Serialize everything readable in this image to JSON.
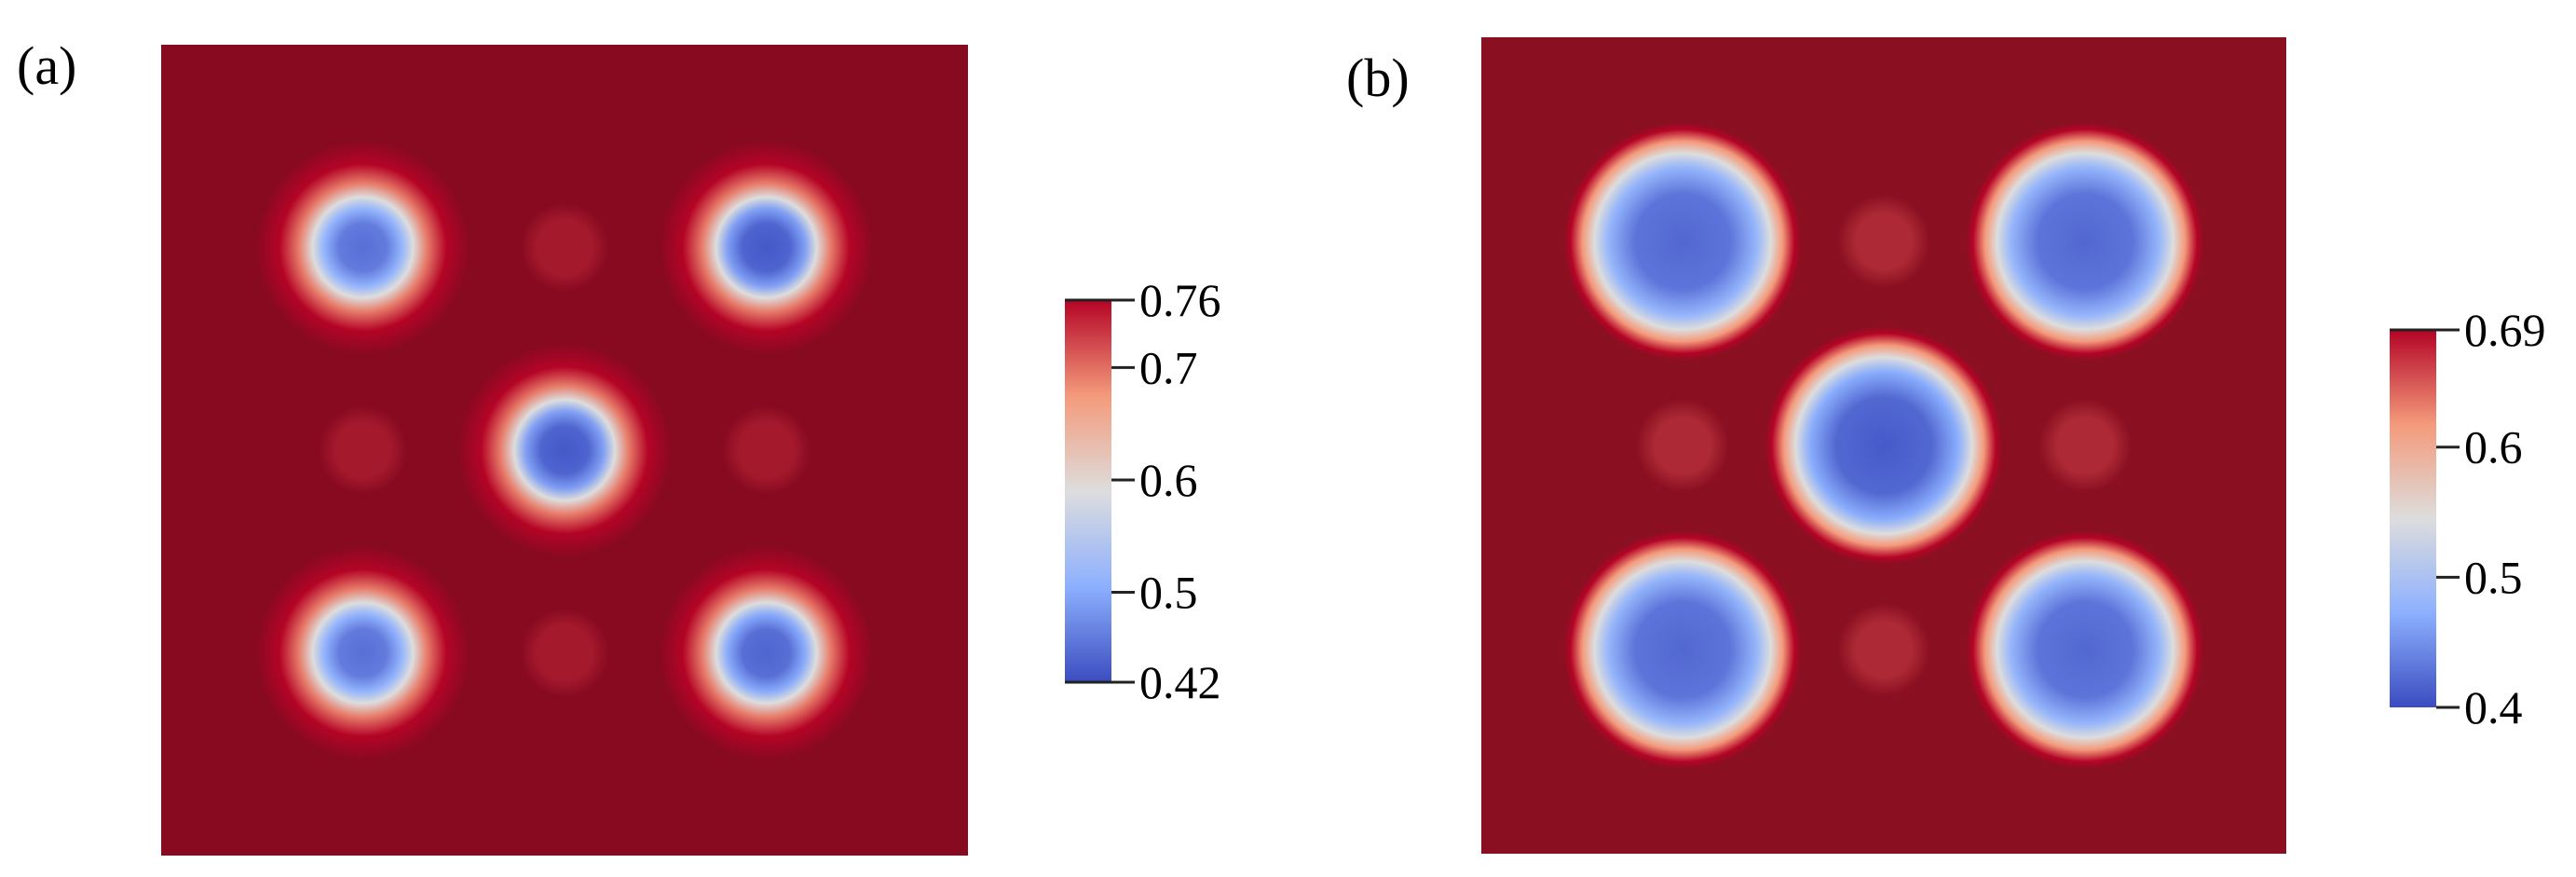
{
  "chart_data": [
    {
      "type": "heatmap",
      "panel_label": "(a)",
      "colorbar": {
        "min": 0.42,
        "max": 0.76,
        "ticks": [
          0.76,
          0.7,
          0.6,
          0.5,
          0.42
        ],
        "tick_labels": [
          "0.76",
          "0.7",
          "0.6",
          "0.5",
          "0.42"
        ],
        "colormap": "cool-to-warm",
        "stops": [
          {
            "value": 0.0,
            "color": "#3b4cc0"
          },
          {
            "value": 0.25,
            "color": "#8db0fe"
          },
          {
            "value": 0.5,
            "color": "#dddddd"
          },
          {
            "value": 0.75,
            "color": "#f49a7b"
          },
          {
            "value": 1.0,
            "color": "#b40426"
          }
        ]
      },
      "background_value": 0.76,
      "background_color": "#870a20",
      "features": [
        {
          "name": "droplet",
          "x": 0.25,
          "y": 0.75,
          "core_value": 0.45,
          "size": "small"
        },
        {
          "name": "droplet",
          "x": 0.75,
          "y": 0.75,
          "core_value": 0.43,
          "size": "small"
        },
        {
          "name": "droplet",
          "x": 0.5,
          "y": 0.5,
          "core_value": 0.43,
          "size": "small"
        },
        {
          "name": "droplet",
          "x": 0.25,
          "y": 0.25,
          "core_value": 0.45,
          "size": "small"
        },
        {
          "name": "droplet",
          "x": 0.75,
          "y": 0.25,
          "core_value": 0.44,
          "size": "small"
        },
        {
          "name": "faint-spot",
          "x": 0.5,
          "y": 0.75,
          "core_value": 0.74
        },
        {
          "name": "faint-spot",
          "x": 0.25,
          "y": 0.5,
          "core_value": 0.74
        },
        {
          "name": "faint-spot",
          "x": 0.75,
          "y": 0.5,
          "core_value": 0.74
        },
        {
          "name": "faint-spot",
          "x": 0.5,
          "y": 0.25,
          "core_value": 0.74
        }
      ]
    },
    {
      "type": "heatmap",
      "panel_label": "(b)",
      "colorbar": {
        "min": 0.4,
        "max": 0.69,
        "ticks": [
          0.69,
          0.6,
          0.5,
          0.4
        ],
        "tick_labels": [
          "0.69",
          "0.6",
          "0.5",
          "0.4"
        ],
        "colormap": "cool-to-warm",
        "stops": [
          {
            "value": 0.0,
            "color": "#3b4cc0"
          },
          {
            "value": 0.25,
            "color": "#8db0fe"
          },
          {
            "value": 0.5,
            "color": "#dddddd"
          },
          {
            "value": 0.75,
            "color": "#f49a7b"
          },
          {
            "value": 1.0,
            "color": "#b40426"
          }
        ]
      },
      "background_value": 0.69,
      "background_color": "#8a0f21",
      "features": [
        {
          "name": "droplet",
          "x": 0.25,
          "y": 0.75,
          "core_value": 0.42,
          "size": "large"
        },
        {
          "name": "droplet",
          "x": 0.75,
          "y": 0.75,
          "core_value": 0.42,
          "size": "large"
        },
        {
          "name": "droplet",
          "x": 0.5,
          "y": 0.5,
          "core_value": 0.41,
          "size": "large"
        },
        {
          "name": "droplet",
          "x": 0.25,
          "y": 0.25,
          "core_value": 0.42,
          "size": "large"
        },
        {
          "name": "droplet",
          "x": 0.75,
          "y": 0.25,
          "core_value": 0.42,
          "size": "large"
        },
        {
          "name": "faint-spot",
          "x": 0.5,
          "y": 0.75,
          "core_value": 0.66
        },
        {
          "name": "faint-spot",
          "x": 0.25,
          "y": 0.5,
          "core_value": 0.66
        },
        {
          "name": "faint-spot",
          "x": 0.75,
          "y": 0.5,
          "core_value": 0.66
        },
        {
          "name": "faint-spot",
          "x": 0.5,
          "y": 0.25,
          "core_value": 0.66
        }
      ]
    }
  ]
}
